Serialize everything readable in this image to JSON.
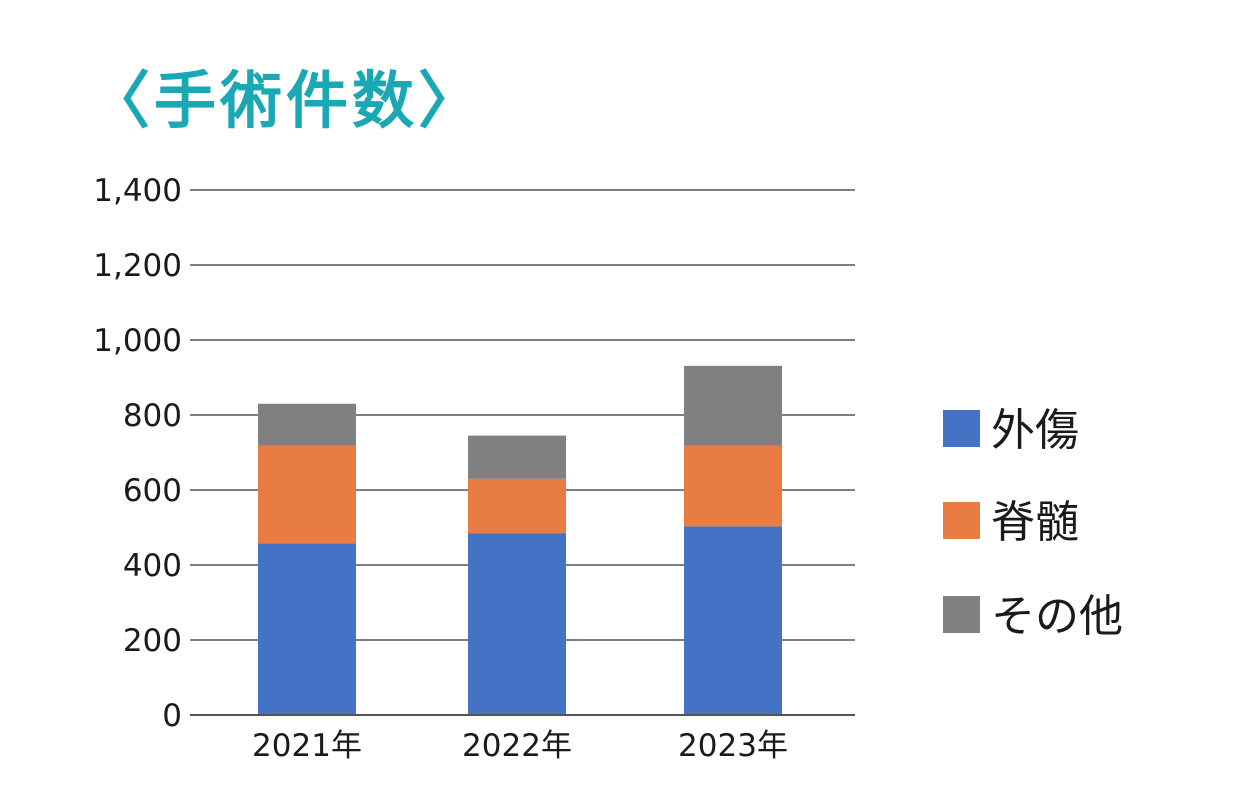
{
  "chart_data": {
    "type": "bar",
    "stacked": true,
    "title": "〈手術件数〉",
    "categories": [
      "2021年",
      "2022年",
      "2023年"
    ],
    "series": [
      {
        "name": "外傷",
        "values": [
          458,
          484,
          503
        ],
        "color": "#4472c4"
      },
      {
        "name": "脊髄",
        "values": [
          260,
          146,
          215
        ],
        "color": "#e97c42"
      },
      {
        "name": "その他",
        "values": [
          112,
          115,
          213
        ],
        "color": "#808080"
      }
    ],
    "yticks": [
      "0",
      "200",
      "400",
      "600",
      "800",
      "1,000",
      "1,200",
      "1,400"
    ],
    "ylim": [
      0,
      1400
    ],
    "grid": true,
    "legend": "right"
  }
}
